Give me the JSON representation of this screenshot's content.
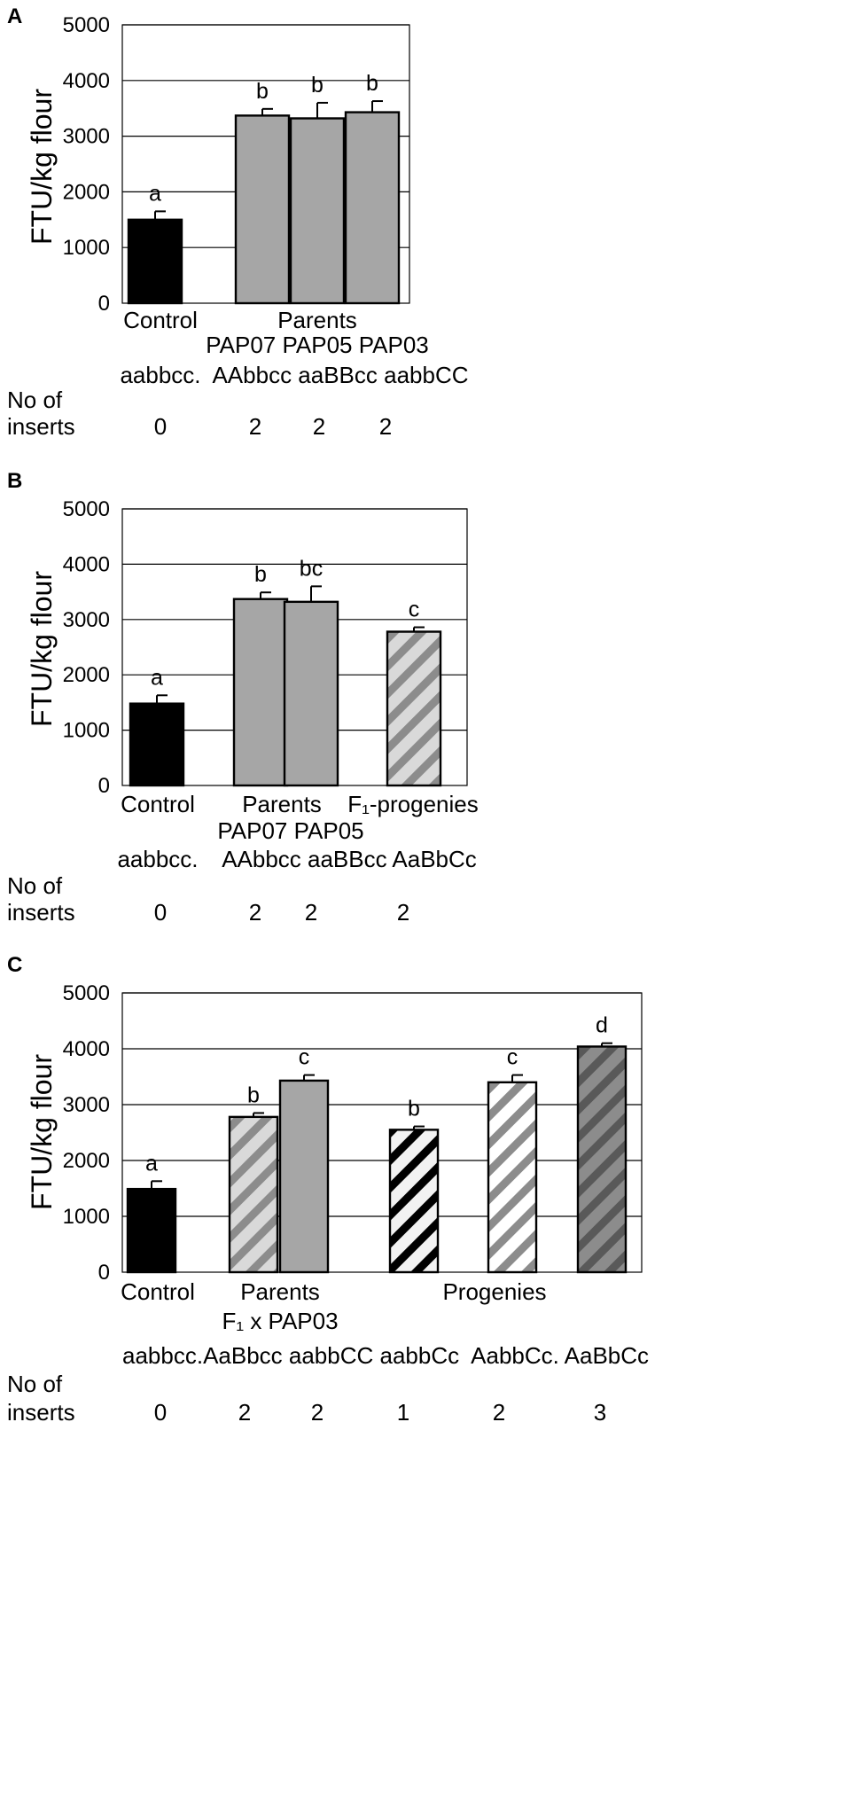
{
  "patterns": {
    "solid_black": "#000000",
    "solid_gray": "#a6a6a6",
    "hatch_lightgray_gray": [
      "#d9d9d9",
      "#8c8c8c"
    ],
    "hatch_white_black": [
      "#f2f2f2",
      "#000000"
    ],
    "hatch_white_gray": [
      "#ffffff",
      "#8c8c8c"
    ],
    "hatch_darkgray_gray": [
      "#8c8c8c",
      "#595959"
    ]
  },
  "chart_data": [
    {
      "type": "bar",
      "panel": "A",
      "ylabel": "FTU/kg flour",
      "ylim": [
        0,
        5000
      ],
      "yticks": [
        "0",
        "1000",
        "2000",
        "3000",
        "4000",
        "5000"
      ],
      "gridlines": true,
      "bars": [
        {
          "value": 1500,
          "error": 150,
          "letter": "a",
          "fill": "solid_black"
        },
        {
          "value": 3370,
          "error": 120,
          "letter": "b",
          "fill": "solid_gray"
        },
        {
          "value": 3320,
          "error": 280,
          "letter": "b",
          "fill": "solid_gray"
        },
        {
          "value": 3430,
          "error": 200,
          "letter": "b",
          "fill": "solid_gray"
        }
      ],
      "group_labels": [
        "Control",
        "Parents"
      ],
      "line_names": [
        "PAP07 PAP05 PAP03"
      ],
      "genotypes": [
        "aabbcc.",
        "AAbbcc aaBBcc aabbCC"
      ],
      "inserts_label": [
        "No of",
        "inserts"
      ],
      "inserts": [
        "0",
        "2",
        "2",
        "2"
      ]
    },
    {
      "type": "bar",
      "panel": "B",
      "ylabel": "FTU/kg flour",
      "ylim": [
        0,
        5000
      ],
      "yticks": [
        "0",
        "1000",
        "2000",
        "3000",
        "4000",
        "5000"
      ],
      "gridlines": true,
      "bars": [
        {
          "value": 1480,
          "error": 150,
          "letter": "a",
          "fill": "solid_black"
        },
        {
          "value": 3370,
          "error": 120,
          "letter": "b",
          "fill": "solid_gray"
        },
        {
          "value": 3320,
          "error": 280,
          "letter": "bc",
          "fill": "solid_gray"
        },
        {
          "value": 2780,
          "error": 80,
          "letter": "c",
          "fill": "hatch_lightgray_gray"
        }
      ],
      "group_labels": [
        "Control",
        "Parents",
        "F₁-progenies"
      ],
      "line_names": [
        "PAP07 PAP05"
      ],
      "genotypes": [
        "aabbcc.",
        "AAbbcc aaBBcc AaBbCc"
      ],
      "inserts_label": [
        "No of",
        "inserts"
      ],
      "inserts": [
        "0",
        "2",
        "2",
        "2"
      ]
    },
    {
      "type": "bar",
      "panel": "C",
      "ylabel": "FTU/kg flour",
      "ylim": [
        0,
        5000
      ],
      "yticks": [
        "0",
        "1000",
        "2000",
        "3000",
        "4000",
        "5000"
      ],
      "gridlines": true,
      "bars": [
        {
          "value": 1490,
          "error": 140,
          "letter": "a",
          "fill": "solid_black"
        },
        {
          "value": 2780,
          "error": 70,
          "letter": "b",
          "fill": "hatch_lightgray_gray"
        },
        {
          "value": 3430,
          "error": 100,
          "letter": "c",
          "fill": "solid_gray"
        },
        {
          "value": 2550,
          "error": 60,
          "letter": "b",
          "fill": "hatch_white_black"
        },
        {
          "value": 3400,
          "error": 130,
          "letter": "c",
          "fill": "hatch_white_gray"
        },
        {
          "value": 4040,
          "error": 60,
          "letter": "d",
          "fill": "hatch_darkgray_gray"
        }
      ],
      "group_labels": [
        "Control",
        "Parents",
        "Progenies"
      ],
      "line_names": [
        "F₁ x PAP03"
      ],
      "genotypes": [
        "aabbcc.AaBbcc aabbCC aabbCc  AabbCc. AaBbCc"
      ],
      "inserts_label": [
        "No of",
        "inserts"
      ],
      "inserts": [
        "0",
        "2",
        "2",
        "1",
        "2",
        "3"
      ]
    }
  ]
}
